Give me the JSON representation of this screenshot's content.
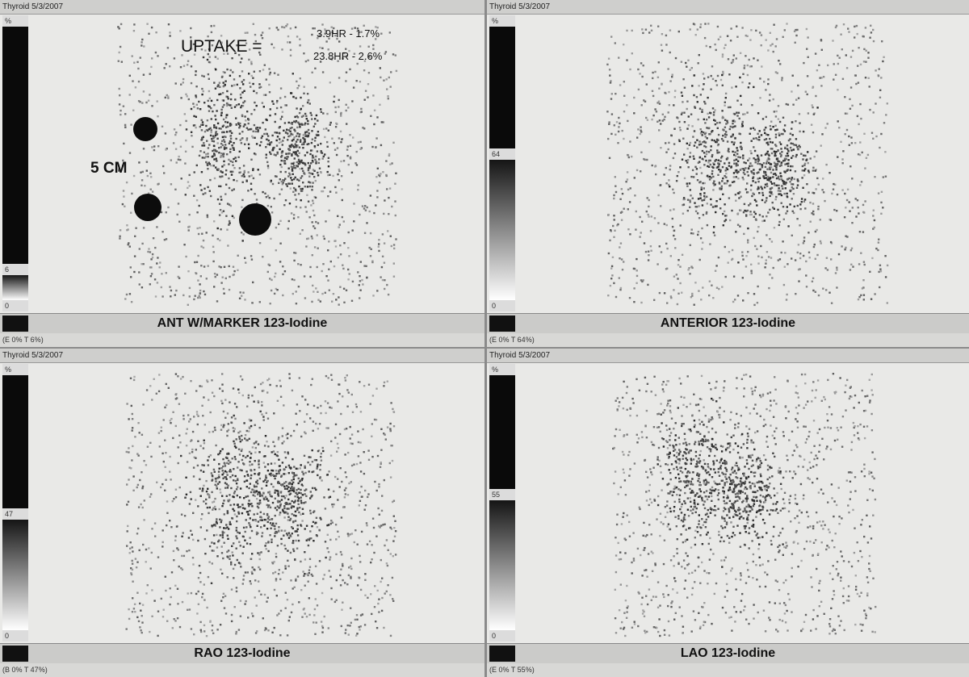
{
  "panels": [
    {
      "header": "Thyroid 5/3/2007",
      "scale": {
        "top": "%",
        "mid": "6",
        "bottom": "0"
      },
      "caption": "ANT W/MARKER 123-Iodine",
      "footer": "(E 0% T 6%)",
      "annotations": {
        "uptake_label": "UPTAKE =",
        "uptake_1": "3.9HR - 1.7%",
        "uptake_2": "23.8HR - 2.6%",
        "marker_distance": "5 CM"
      }
    },
    {
      "header": "Thyroid 5/3/2007",
      "scale": {
        "top": "%",
        "mid": "64",
        "bottom": "0"
      },
      "caption": "ANTERIOR 123-Iodine",
      "footer": "(E 0% T 64%)"
    },
    {
      "header": "Thyroid 5/3/2007",
      "scale": {
        "top": "%",
        "mid": "47",
        "bottom": "0"
      },
      "caption": "RAO 123-Iodine",
      "footer": "(B 0% T 47%)"
    },
    {
      "header": "Thyroid 5/3/2007",
      "scale": {
        "top": "%",
        "mid": "55",
        "bottom": "0"
      },
      "caption": "LAO 123-Iodine",
      "footer": "(E 0% T 55%)"
    }
  ]
}
